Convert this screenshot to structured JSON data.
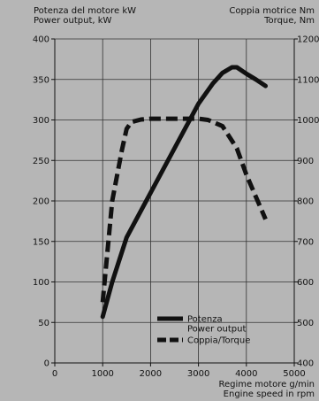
{
  "chart_data": {
    "type": "line",
    "left_axis_label": [
      "Potenza del motore kW",
      "Power output, kW"
    ],
    "right_axis_label": [
      "Coppia motrice Nm",
      "Torque, Nm"
    ],
    "x_axis_label": [
      "Regime motore g/min",
      "Engine speed in rpm"
    ],
    "x_ticks": [
      0,
      1000,
      2000,
      3000,
      4000,
      5000
    ],
    "left_ticks": [
      0,
      50,
      100,
      150,
      200,
      250,
      300,
      350,
      400
    ],
    "right_ticks": [
      400,
      500,
      600,
      700,
      800,
      900,
      1000,
      1100,
      1200
    ],
    "xlim": [
      0,
      5000
    ],
    "ylim_left": [
      0,
      400
    ],
    "ylim_right": [
      400,
      1200
    ],
    "grid": true,
    "legend_position": "bottom-right inside plot",
    "series": [
      {
        "name": "Potenza\nPower output",
        "axis": "left",
        "style": "solid",
        "x": [
          1000,
          1200,
          1500,
          2000,
          2500,
          3000,
          3300,
          3500,
          3700,
          3800,
          4000,
          4200,
          4400
        ],
        "y": [
          57,
          100,
          155,
          210,
          265,
          320,
          345,
          358,
          365,
          365,
          357,
          350,
          342
        ]
      },
      {
        "name": "Coppia/Torque",
        "axis": "right",
        "style": "dashed",
        "x": [
          1000,
          1200,
          1400,
          1500,
          1600,
          1800,
          2000,
          2500,
          3000,
          3200,
          3500,
          3800,
          4000,
          4200,
          4400
        ],
        "y": [
          550,
          800,
          925,
          978,
          995,
          1001,
          1003,
          1003,
          1003,
          1000,
          985,
          930,
          865,
          810,
          755
        ]
      }
    ]
  }
}
